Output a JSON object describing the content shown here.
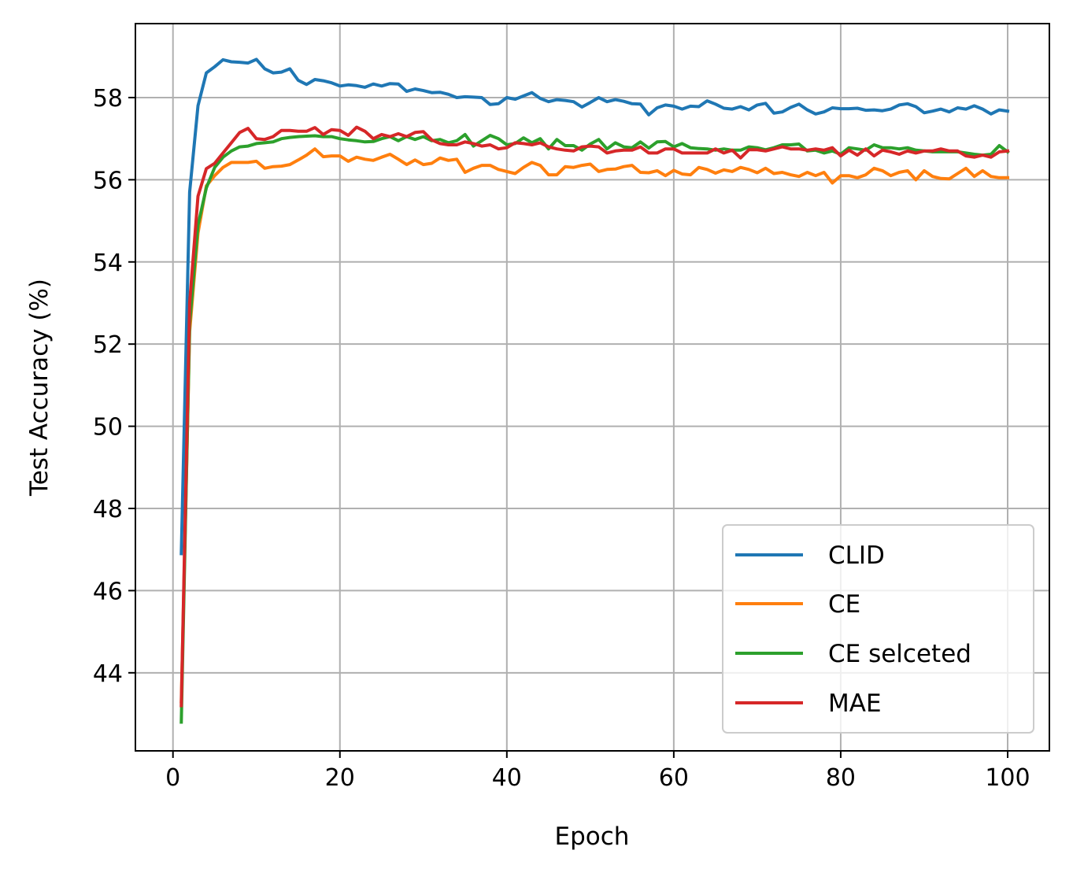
{
  "chart_data": {
    "type": "line",
    "title": "",
    "xlabel": "Epoch",
    "ylabel": "Test Accuracy (%)",
    "xlim": [
      -4.5,
      105
    ],
    "ylim": [
      42.1,
      59.8
    ],
    "xticks": [
      0,
      20,
      40,
      60,
      80,
      100
    ],
    "yticks": [
      44,
      46,
      48,
      50,
      52,
      54,
      56,
      58
    ],
    "grid": true,
    "legend_position": "lower-right",
    "series": [
      {
        "name": "CLID",
        "color": "#1f77b4",
        "x": [
          1,
          2,
          3,
          4,
          5,
          6,
          7,
          8,
          9,
          10,
          11,
          12,
          13,
          14,
          15,
          16,
          17,
          18,
          19,
          20,
          21,
          22,
          23,
          24,
          25,
          26,
          27,
          28,
          29,
          30,
          31,
          32,
          33,
          34,
          35,
          36,
          37,
          38,
          39,
          40,
          41,
          42,
          43,
          44,
          45,
          46,
          47,
          48,
          49,
          50,
          51,
          52,
          53,
          54,
          55,
          56,
          57,
          58,
          59,
          60,
          61,
          62,
          63,
          64,
          65,
          66,
          67,
          68,
          69,
          70,
          71,
          72,
          73,
          74,
          75,
          76,
          77,
          78,
          79,
          80,
          81,
          82,
          83,
          84,
          85,
          86,
          87,
          88,
          89,
          90,
          91,
          92,
          93,
          94,
          95,
          96,
          97,
          98,
          99,
          100
        ],
        "y": [
          46.9,
          55.7,
          57.8,
          58.6,
          58.75,
          58.92,
          58.87,
          58.86,
          58.84,
          58.93,
          58.7,
          58.6,
          58.62,
          58.7,
          58.42,
          58.32,
          58.44,
          58.41,
          58.36,
          58.28,
          58.31,
          58.29,
          58.25,
          58.33,
          58.28,
          58.34,
          58.33,
          58.15,
          58.21,
          58.17,
          58.12,
          58.13,
          58.08,
          58.0,
          58.02,
          58.01,
          58.0,
          57.83,
          57.85,
          58.0,
          57.96,
          58.04,
          58.12,
          57.98,
          57.9,
          57.95,
          57.93,
          57.9,
          57.77,
          57.88,
          58.0,
          57.9,
          57.95,
          57.91,
          57.85,
          57.84,
          57.58,
          57.75,
          57.82,
          57.79,
          57.72,
          57.79,
          57.78,
          57.92,
          57.84,
          57.74,
          57.72,
          57.78,
          57.7,
          57.82,
          57.86,
          57.62,
          57.65,
          57.76,
          57.84,
          57.7,
          57.6,
          57.65,
          57.75,
          57.73,
          57.73,
          57.74,
          57.69,
          57.7,
          57.68,
          57.72,
          57.82,
          57.85,
          57.78,
          57.63,
          57.67,
          57.72,
          57.65,
          57.75,
          57.72,
          57.8,
          57.72,
          57.6,
          57.7,
          57.67
        ]
      },
      {
        "name": "CE",
        "color": "#ff7f0e",
        "x": [
          1,
          2,
          3,
          4,
          5,
          6,
          7,
          8,
          9,
          10,
          11,
          12,
          13,
          14,
          15,
          16,
          17,
          18,
          19,
          20,
          21,
          22,
          23,
          24,
          25,
          26,
          27,
          28,
          29,
          30,
          31,
          32,
          33,
          34,
          35,
          36,
          37,
          38,
          39,
          40,
          41,
          42,
          43,
          44,
          45,
          46,
          47,
          48,
          49,
          50,
          51,
          52,
          53,
          54,
          55,
          56,
          57,
          58,
          59,
          60,
          61,
          62,
          63,
          64,
          65,
          66,
          67,
          68,
          69,
          70,
          71,
          72,
          73,
          74,
          75,
          76,
          77,
          78,
          79,
          80,
          81,
          82,
          83,
          84,
          85,
          86,
          87,
          88,
          89,
          90,
          91,
          92,
          93,
          94,
          95,
          96,
          97,
          98,
          99,
          100
        ],
        "y": [
          43.3,
          52.3,
          54.7,
          55.85,
          56.1,
          56.3,
          56.42,
          56.42,
          56.42,
          56.45,
          56.28,
          56.32,
          56.33,
          56.37,
          56.48,
          56.6,
          56.75,
          56.56,
          56.58,
          56.58,
          56.45,
          56.55,
          56.5,
          56.47,
          56.55,
          56.62,
          56.5,
          56.37,
          56.48,
          56.37,
          56.4,
          56.53,
          56.47,
          56.5,
          56.18,
          56.28,
          56.35,
          56.35,
          56.25,
          56.2,
          56.15,
          56.3,
          56.42,
          56.35,
          56.12,
          56.12,
          56.32,
          56.3,
          56.35,
          56.38,
          56.2,
          56.25,
          56.26,
          56.32,
          56.35,
          56.18,
          56.17,
          56.22,
          56.1,
          56.23,
          56.14,
          56.12,
          56.3,
          56.25,
          56.16,
          56.24,
          56.2,
          56.3,
          56.25,
          56.17,
          56.28,
          56.15,
          56.18,
          56.12,
          56.08,
          56.18,
          56.1,
          56.18,
          55.92,
          56.1,
          56.1,
          56.05,
          56.12,
          56.28,
          56.22,
          56.1,
          56.18,
          56.22,
          56.0,
          56.22,
          56.08,
          56.03,
          56.02,
          56.15,
          56.28,
          56.08,
          56.22,
          56.08,
          56.05,
          56.05
        ]
      },
      {
        "name": "CE selceted",
        "color": "#2ca02c",
        "x": [
          1,
          2,
          3,
          4,
          5,
          6,
          7,
          8,
          9,
          10,
          11,
          12,
          13,
          14,
          15,
          16,
          17,
          18,
          19,
          20,
          21,
          22,
          23,
          24,
          25,
          26,
          27,
          28,
          29,
          30,
          31,
          32,
          33,
          34,
          35,
          36,
          37,
          38,
          39,
          40,
          41,
          42,
          43,
          44,
          45,
          46,
          47,
          48,
          49,
          50,
          51,
          52,
          53,
          54,
          55,
          56,
          57,
          58,
          59,
          60,
          61,
          62,
          63,
          64,
          65,
          66,
          67,
          68,
          69,
          70,
          71,
          72,
          73,
          74,
          75,
          76,
          77,
          78,
          79,
          80,
          81,
          82,
          83,
          84,
          85,
          86,
          87,
          88,
          89,
          90,
          91,
          92,
          93,
          94,
          95,
          96,
          97,
          98,
          99,
          100
        ],
        "y": [
          42.8,
          52.5,
          54.9,
          55.8,
          56.3,
          56.55,
          56.7,
          56.8,
          56.82,
          56.88,
          56.9,
          56.92,
          57.0,
          57.03,
          57.05,
          57.06,
          57.07,
          57.05,
          57.05,
          57.0,
          56.97,
          56.95,
          56.92,
          56.93,
          57.0,
          57.05,
          56.95,
          57.05,
          56.98,
          57.05,
          56.95,
          56.98,
          56.9,
          56.95,
          57.1,
          56.82,
          56.95,
          57.08,
          57.0,
          56.85,
          56.88,
          57.02,
          56.9,
          57.0,
          56.75,
          56.98,
          56.83,
          56.83,
          56.72,
          56.87,
          56.98,
          56.75,
          56.9,
          56.8,
          56.78,
          56.92,
          56.77,
          56.92,
          56.93,
          56.8,
          56.88,
          56.78,
          56.76,
          56.75,
          56.72,
          56.75,
          56.72,
          56.72,
          56.8,
          56.78,
          56.73,
          56.78,
          56.85,
          56.85,
          56.87,
          56.7,
          56.72,
          56.65,
          56.7,
          56.62,
          56.78,
          56.75,
          56.72,
          56.85,
          56.78,
          56.78,
          56.75,
          56.78,
          56.72,
          56.7,
          56.68,
          56.68,
          56.68,
          56.68,
          56.65,
          56.62,
          56.6,
          56.62,
          56.83,
          56.68
        ]
      },
      {
        "name": "MAE",
        "color": "#d62728",
        "x": [
          1,
          2,
          3,
          4,
          5,
          6,
          7,
          8,
          9,
          10,
          11,
          12,
          13,
          14,
          15,
          16,
          17,
          18,
          19,
          20,
          21,
          22,
          23,
          24,
          25,
          26,
          27,
          28,
          29,
          30,
          31,
          32,
          33,
          34,
          35,
          36,
          37,
          38,
          39,
          40,
          41,
          42,
          43,
          44,
          45,
          46,
          47,
          48,
          49,
          50,
          51,
          52,
          53,
          54,
          55,
          56,
          57,
          58,
          59,
          60,
          61,
          62,
          63,
          64,
          65,
          66,
          67,
          68,
          69,
          70,
          71,
          72,
          73,
          74,
          75,
          76,
          77,
          78,
          79,
          80,
          81,
          82,
          83,
          84,
          85,
          86,
          87,
          88,
          89,
          90,
          91,
          92,
          93,
          94,
          95,
          96,
          97,
          98,
          99,
          100
        ],
        "y": [
          43.2,
          53.0,
          55.6,
          56.27,
          56.4,
          56.65,
          56.9,
          57.15,
          57.25,
          57.0,
          56.98,
          57.05,
          57.2,
          57.2,
          57.18,
          57.18,
          57.27,
          57.1,
          57.22,
          57.2,
          57.08,
          57.28,
          57.18,
          57.0,
          57.1,
          57.05,
          57.12,
          57.05,
          57.15,
          57.17,
          56.97,
          56.88,
          56.85,
          56.85,
          56.92,
          56.88,
          56.82,
          56.85,
          56.75,
          56.78,
          56.9,
          56.88,
          56.85,
          56.9,
          56.8,
          56.75,
          56.72,
          56.7,
          56.8,
          56.82,
          56.8,
          56.65,
          56.7,
          56.72,
          56.72,
          56.8,
          56.65,
          56.65,
          56.75,
          56.75,
          56.65,
          56.65,
          56.65,
          56.65,
          56.75,
          56.65,
          56.72,
          56.53,
          56.73,
          56.73,
          56.7,
          56.75,
          56.8,
          56.75,
          56.75,
          56.72,
          56.75,
          56.72,
          56.78,
          56.58,
          56.72,
          56.6,
          56.75,
          56.58,
          56.72,
          56.68,
          56.62,
          56.7,
          56.65,
          56.7,
          56.7,
          56.75,
          56.7,
          56.7,
          56.58,
          56.55,
          56.6,
          56.55,
          56.68,
          56.7
        ]
      }
    ]
  }
}
